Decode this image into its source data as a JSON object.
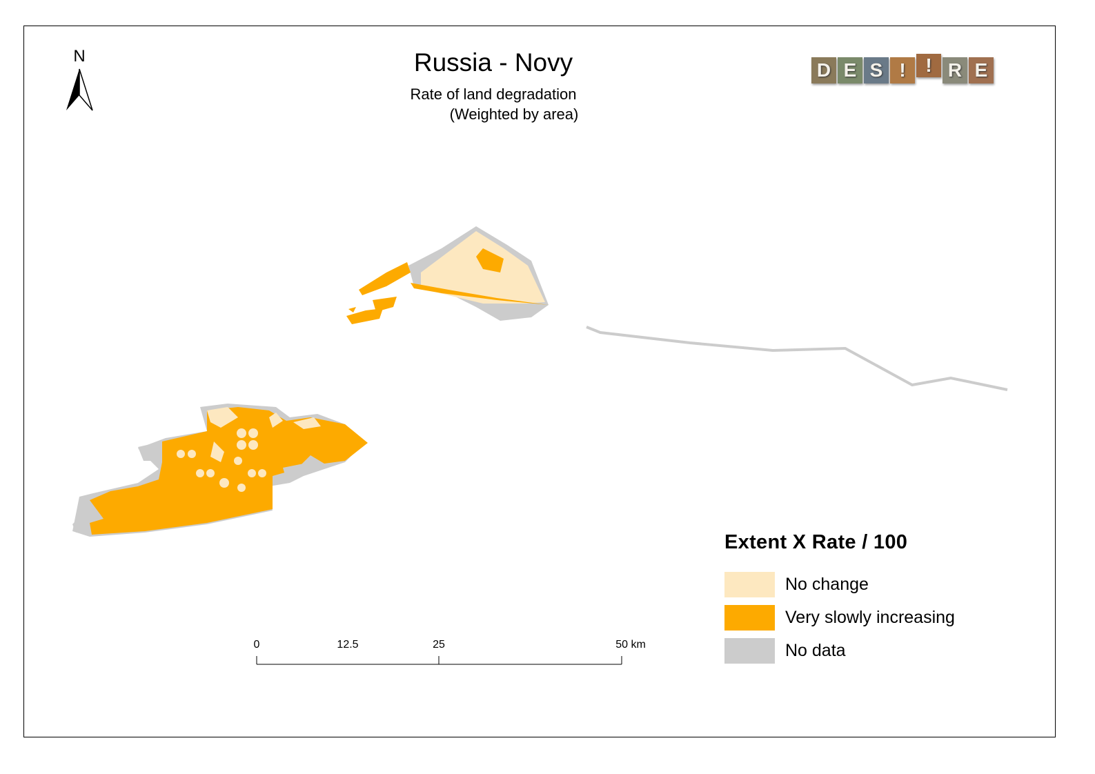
{
  "map": {
    "title": "Russia - Novy",
    "subtitle": "Rate of land degradation",
    "subtitle2": "(Weighted by area)"
  },
  "north_arrow": {
    "label": "N"
  },
  "logo": {
    "letters": [
      "D",
      "E",
      "S",
      "!",
      "R",
      "E"
    ]
  },
  "legend": {
    "title": "Extent X Rate / 100",
    "items": [
      {
        "label": "No change",
        "color": "#fde8c0"
      },
      {
        "label": "Very slowly increasing",
        "color": "#fdaa00"
      },
      {
        "label": "No data",
        "color": "#cccccc"
      }
    ]
  },
  "scale_bar": {
    "ticks": [
      "0",
      "12.5",
      "25",
      "50 km"
    ]
  },
  "colors": {
    "no_change": "#fde8c0",
    "very_slowly_increasing": "#fdaa00",
    "no_data": "#cccccc"
  }
}
